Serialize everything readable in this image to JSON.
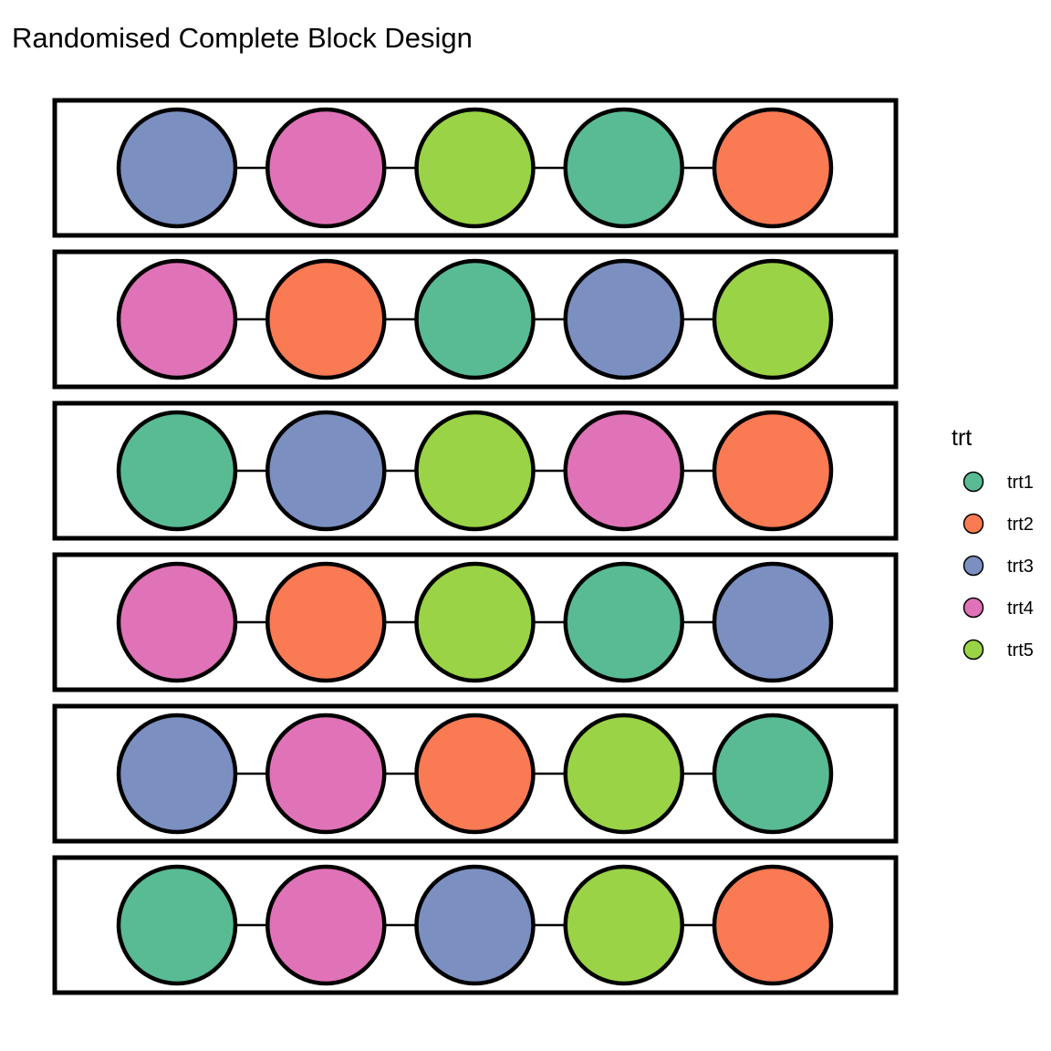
{
  "title": "Randomised Complete Block Design",
  "legend": {
    "title": "trt",
    "items": [
      {
        "key": "trt1",
        "label": "trt1",
        "color": "#58BB94"
      },
      {
        "key": "trt2",
        "label": "trt2",
        "color": "#F97A53"
      },
      {
        "key": "trt3",
        "label": "trt3",
        "color": "#7B8FC1"
      },
      {
        "key": "trt4",
        "label": "trt4",
        "color": "#E072B7"
      },
      {
        "key": "trt5",
        "label": "trt5",
        "color": "#9AD345"
      }
    ]
  },
  "blocks": [
    [
      "trt3",
      "trt4",
      "trt5",
      "trt1",
      "trt2"
    ],
    [
      "trt4",
      "trt2",
      "trt1",
      "trt3",
      "trt5"
    ],
    [
      "trt1",
      "trt3",
      "trt5",
      "trt4",
      "trt2"
    ],
    [
      "trt4",
      "trt2",
      "trt5",
      "trt1",
      "trt3"
    ],
    [
      "trt3",
      "trt4",
      "trt2",
      "trt5",
      "trt1"
    ],
    [
      "trt1",
      "trt4",
      "trt3",
      "trt5",
      "trt2"
    ]
  ]
}
